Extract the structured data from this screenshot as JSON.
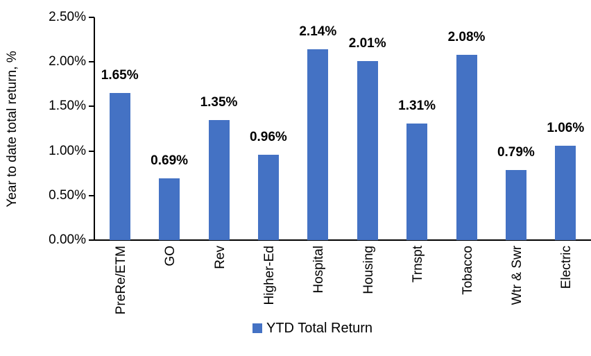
{
  "chart_data": {
    "type": "bar",
    "title": "",
    "xlabel": "",
    "ylabel": "Year to date total return, %",
    "categories": [
      "PreRe/ETM",
      "GO",
      "Rev",
      "Higher-Ed",
      "Hospital",
      "Housing",
      "Trnspt",
      "Tobacco",
      "Wtr & Swr",
      "Electric"
    ],
    "values": [
      1.65,
      0.69,
      1.35,
      0.96,
      2.14,
      2.01,
      1.31,
      2.08,
      0.79,
      1.06
    ],
    "data_labels": [
      "1.65%",
      "0.69%",
      "1.35%",
      "0.96%",
      "2.14%",
      "2.01%",
      "1.31%",
      "2.08%",
      "0.79%",
      "1.06%"
    ],
    "ylim": [
      0,
      2.5
    ],
    "yticks": [
      {
        "value": 0.0,
        "label": "0.00%"
      },
      {
        "value": 0.5,
        "label": "0.50%"
      },
      {
        "value": 1.0,
        "label": "1.00%"
      },
      {
        "value": 1.5,
        "label": "1.50%"
      },
      {
        "value": 2.0,
        "label": "2.00%"
      },
      {
        "value": 2.5,
        "label": "2.50%"
      }
    ],
    "grid": false,
    "bar_color": "#4472C4",
    "axis_color": "#000000",
    "legend_position": "bottom",
    "legend": [
      {
        "label": "YTD Total Return",
        "color": "#4472C4"
      }
    ]
  }
}
